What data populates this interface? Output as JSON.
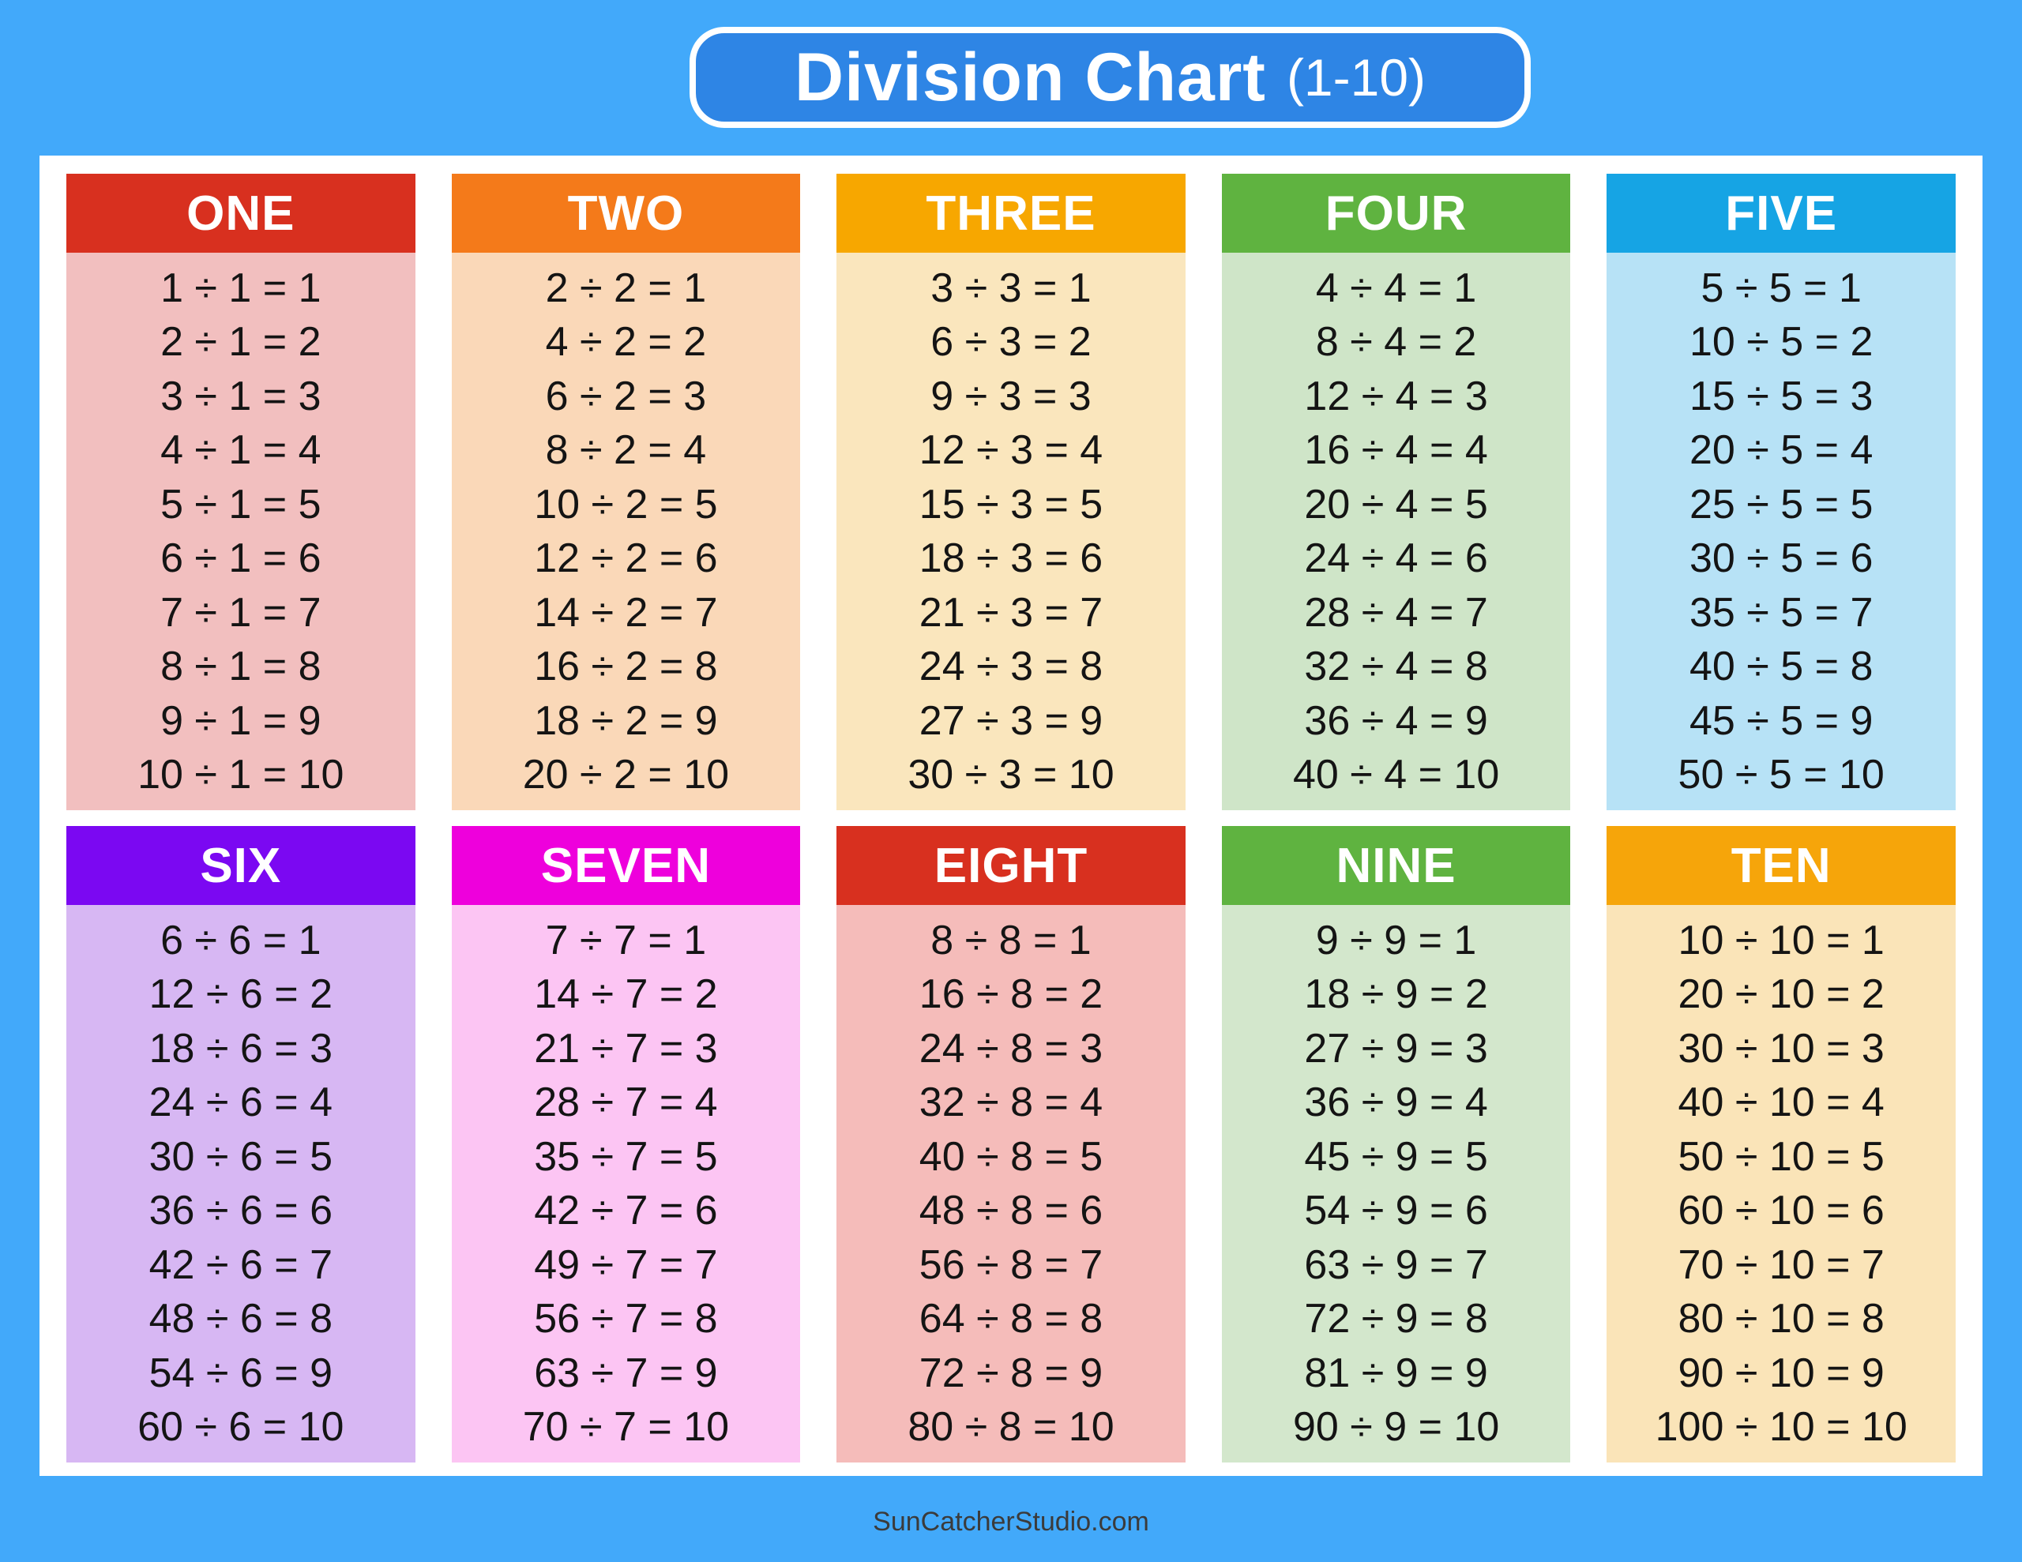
{
  "title": {
    "main": "Division Chart",
    "suffix": "(1-10)"
  },
  "footer": {
    "site": "SunCatcherStudio.com"
  },
  "colors": {
    "page_background": "#42a9fa",
    "badge_background": "#2e85e5",
    "badge_border": "#ffffff",
    "sheet_background": "#ffffff",
    "equation_text": "#141414",
    "header_text": "#ffffff",
    "footer_text": "#3b3b3b"
  },
  "cards": [
    {
      "label": "ONE",
      "header_color": "#d8301f",
      "body_color": "#f2bfbf",
      "equations": [
        "1 ÷ 1 = 1",
        "2 ÷ 1 = 2",
        "3 ÷ 1 = 3",
        "4 ÷ 1 = 4",
        "5 ÷ 1 = 5",
        "6 ÷ 1 = 6",
        "7 ÷ 1 = 7",
        "8 ÷ 1 = 8",
        "9 ÷ 1 = 9",
        "10 ÷ 1 = 10"
      ]
    },
    {
      "label": "TWO",
      "header_color": "#f47a1a",
      "body_color": "#fad8b8",
      "equations": [
        "2 ÷ 2 = 1",
        "4 ÷ 2 = 2",
        "6 ÷ 2 = 3",
        "8 ÷ 2 = 4",
        "10 ÷ 2 = 5",
        "12 ÷ 2 = 6",
        "14 ÷ 2 = 7",
        "16 ÷ 2 = 8",
        "18 ÷ 2 = 9",
        "20 ÷ 2 = 10"
      ]
    },
    {
      "label": "THREE",
      "header_color": "#f7a700",
      "body_color": "#fae6bd",
      "equations": [
        "3 ÷ 3 = 1",
        "6 ÷ 3 = 2",
        "9 ÷ 3 = 3",
        "12 ÷ 3 = 4",
        "15 ÷ 3 = 5",
        "18 ÷ 3 = 6",
        "21 ÷ 3 = 7",
        "24 ÷ 3 = 8",
        "27 ÷ 3 = 9",
        "30 ÷ 3 = 10"
      ]
    },
    {
      "label": "FOUR",
      "header_color": "#5fb340",
      "body_color": "#cfe5c8",
      "equations": [
        "4 ÷ 4 = 1",
        "8 ÷ 4 = 2",
        "12 ÷ 4 = 3",
        "16 ÷ 4 = 4",
        "20 ÷ 4 = 5",
        "24 ÷ 4 = 6",
        "28 ÷ 4 = 7",
        "32 ÷ 4 = 8",
        "36 ÷ 4 = 9",
        "40 ÷ 4 = 10"
      ]
    },
    {
      "label": "FIVE",
      "header_color": "#16a4e4",
      "body_color": "#b7e2f6",
      "equations": [
        "5 ÷ 5 = 1",
        "10 ÷ 5 = 2",
        "15 ÷ 5 = 3",
        "20 ÷ 5 = 4",
        "25 ÷ 5 = 5",
        "30 ÷ 5 = 6",
        "35 ÷ 5 = 7",
        "40 ÷ 5 = 8",
        "45 ÷ 5 = 9",
        "50 ÷ 5 = 10"
      ]
    },
    {
      "label": "SIX",
      "header_color": "#7b08f2",
      "body_color": "#d7b7f3",
      "equations": [
        "6 ÷ 6 = 1",
        "12 ÷ 6 = 2",
        "18 ÷ 6 = 3",
        "24 ÷ 6 = 4",
        "30 ÷ 6 = 5",
        "36 ÷ 6 = 6",
        "42 ÷ 6 = 7",
        "48 ÷ 6 = 8",
        "54 ÷ 6 = 9",
        "60 ÷ 6 = 10"
      ]
    },
    {
      "label": "SEVEN",
      "header_color": "#ee00dc",
      "body_color": "#fcc5f3",
      "equations": [
        "7 ÷ 7 = 1",
        "14 ÷ 7 = 2",
        "21 ÷ 7 = 3",
        "28 ÷ 7 = 4",
        "35 ÷ 7 = 5",
        "42 ÷ 7 = 6",
        "49 ÷ 7 = 7",
        "56 ÷ 7 = 8",
        "63 ÷ 7 = 9",
        "70 ÷ 7 = 10"
      ]
    },
    {
      "label": "EIGHT",
      "header_color": "#d8301f",
      "body_color": "#f5bcba",
      "equations": [
        "8 ÷ 8 = 1",
        "16 ÷ 8 = 2",
        "24 ÷ 8 = 3",
        "32 ÷ 8 = 4",
        "40 ÷ 8 = 5",
        "48 ÷ 8 = 6",
        "56 ÷ 8 = 7",
        "64 ÷ 8 = 8",
        "72 ÷ 8 = 9",
        "80 ÷ 8 = 10"
      ]
    },
    {
      "label": "NINE",
      "header_color": "#5fb340",
      "body_color": "#d3e7cc",
      "equations": [
        "9 ÷ 9 = 1",
        "18 ÷ 9 = 2",
        "27 ÷ 9 = 3",
        "36 ÷ 9 = 4",
        "45 ÷ 9 = 5",
        "54 ÷ 9 = 6",
        "63 ÷ 9 = 7",
        "72 ÷ 9 = 8",
        "81 ÷ 9 = 9",
        "90 ÷ 9 = 10"
      ]
    },
    {
      "label": "TEN",
      "header_color": "#f6a50a",
      "body_color": "#fae4b8",
      "equations": [
        "10 ÷ 10 = 1",
        "20 ÷ 10 = 2",
        "30 ÷ 10 = 3",
        "40 ÷ 10 = 4",
        "50 ÷ 10 = 5",
        "60 ÷ 10 = 6",
        "70 ÷ 10 = 7",
        "80 ÷ 10 = 8",
        "90 ÷ 10 = 9",
        "100 ÷ 10 = 10"
      ]
    }
  ]
}
